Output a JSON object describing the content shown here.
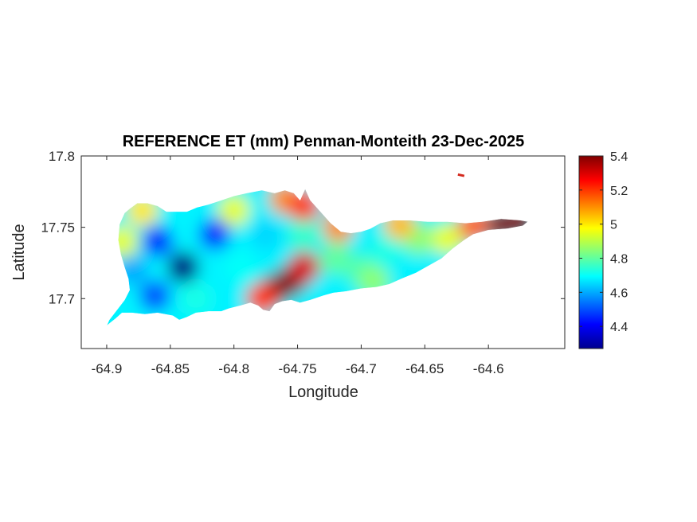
{
  "chart_data": {
    "type": "heatmap",
    "title": "REFERENCE ET (mm) Penman-Monteith 23-Dec-2025",
    "xlabel": "Longitude",
    "ylabel": "Latitude",
    "xlim": [
      -64.92,
      -64.54
    ],
    "ylim": [
      17.665,
      17.8
    ],
    "x_ticks": [
      -64.9,
      -64.85,
      -64.8,
      -64.75,
      -64.7,
      -64.65,
      -64.6
    ],
    "x_tick_labels": [
      "-64.9",
      "-64.85",
      "-64.8",
      "-64.75",
      "-64.7",
      "-64.65",
      "-64.6"
    ],
    "y_ticks": [
      17.7,
      17.75,
      17.8
    ],
    "y_tick_labels": [
      "17.7",
      "17.75",
      "17.8"
    ],
    "colormap": "jet",
    "colorbar": {
      "clim": [
        4.27,
        5.4
      ],
      "ticks": [
        4.4,
        4.6,
        4.8,
        5.0,
        5.2,
        5.4
      ],
      "tick_labels": [
        "4.4",
        "4.6",
        "4.8",
        "5",
        "5.2",
        "5.4"
      ]
    },
    "grid": false,
    "outline": [
      [
        -64.9,
        17.681
      ],
      [
        -64.893,
        17.686
      ],
      [
        -64.888,
        17.69
      ],
      [
        -64.88,
        17.69
      ],
      [
        -64.87,
        17.689
      ],
      [
        -64.86,
        17.69
      ],
      [
        -64.848,
        17.688
      ],
      [
        -64.843,
        17.685
      ],
      [
        -64.837,
        17.687
      ],
      [
        -64.83,
        17.69
      ],
      [
        -64.82,
        17.691
      ],
      [
        -64.81,
        17.691
      ],
      [
        -64.804,
        17.693
      ],
      [
        -64.795,
        17.695
      ],
      [
        -64.787,
        17.697
      ],
      [
        -64.781,
        17.695
      ],
      [
        -64.777,
        17.692
      ],
      [
        -64.772,
        17.691
      ],
      [
        -64.768,
        17.696
      ],
      [
        -64.762,
        17.698
      ],
      [
        -64.755,
        17.699
      ],
      [
        -64.748,
        17.697
      ],
      [
        -64.74,
        17.699
      ],
      [
        -64.73,
        17.702
      ],
      [
        -64.722,
        17.704
      ],
      [
        -64.712,
        17.705
      ],
      [
        -64.7,
        17.707
      ],
      [
        -64.688,
        17.708
      ],
      [
        -64.678,
        17.71
      ],
      [
        -64.668,
        17.714
      ],
      [
        -64.657,
        17.718
      ],
      [
        -64.647,
        17.723
      ],
      [
        -64.637,
        17.728
      ],
      [
        -64.628,
        17.735
      ],
      [
        -64.619,
        17.741
      ],
      [
        -64.612,
        17.745
      ],
      [
        -64.6,
        17.748
      ],
      [
        -64.585,
        17.749
      ],
      [
        -64.573,
        17.751
      ],
      [
        -64.569,
        17.754
      ],
      [
        -64.575,
        17.755
      ],
      [
        -64.59,
        17.756
      ],
      [
        -64.605,
        17.754
      ],
      [
        -64.618,
        17.753
      ],
      [
        -64.632,
        17.754
      ],
      [
        -64.648,
        17.754
      ],
      [
        -64.662,
        17.755
      ],
      [
        -64.675,
        17.755
      ],
      [
        -64.685,
        17.753
      ],
      [
        -64.693,
        17.749
      ],
      [
        -64.7,
        17.747
      ],
      [
        -64.708,
        17.746
      ],
      [
        -64.716,
        17.747
      ],
      [
        -64.724,
        17.753
      ],
      [
        -64.732,
        17.761
      ],
      [
        -64.74,
        17.769
      ],
      [
        -64.744,
        17.777
      ],
      [
        -64.748,
        17.769
      ],
      [
        -64.753,
        17.774
      ],
      [
        -64.76,
        17.776
      ],
      [
        -64.768,
        17.774
      ],
      [
        -64.778,
        17.776
      ],
      [
        -64.79,
        17.774
      ],
      [
        -64.8,
        17.772
      ],
      [
        -64.81,
        17.769
      ],
      [
        -64.82,
        17.766
      ],
      [
        -64.829,
        17.764
      ],
      [
        -64.837,
        17.761
      ],
      [
        -64.845,
        17.761
      ],
      [
        -64.853,
        17.761
      ],
      [
        -64.86,
        17.765
      ],
      [
        -64.868,
        17.767
      ],
      [
        -64.876,
        17.767
      ],
      [
        -64.882,
        17.763
      ],
      [
        -64.886,
        17.76
      ],
      [
        -64.89,
        17.752
      ],
      [
        -64.891,
        17.741
      ],
      [
        -64.889,
        17.731
      ],
      [
        -64.886,
        17.722
      ],
      [
        -64.883,
        17.714
      ],
      [
        -64.882,
        17.706
      ],
      [
        -64.886,
        17.699
      ],
      [
        -64.892,
        17.692
      ],
      [
        -64.898,
        17.685
      ]
    ],
    "islet": [
      [
        -64.624,
        17.787
      ],
      [
        -64.619,
        17.786
      ]
    ],
    "hotspots": [
      {
        "x": -64.84,
        "y": 17.722,
        "value": 4.27
      },
      {
        "x": -64.86,
        "y": 17.74,
        "value": 4.45
      },
      {
        "x": -64.815,
        "y": 17.745,
        "value": 4.45
      },
      {
        "x": -64.862,
        "y": 17.702,
        "value": 4.5
      },
      {
        "x": -64.88,
        "y": 17.72,
        "value": 4.6
      },
      {
        "x": -64.795,
        "y": 17.722,
        "value": 4.7
      },
      {
        "x": -64.83,
        "y": 17.7,
        "value": 4.72
      },
      {
        "x": -64.775,
        "y": 17.745,
        "value": 4.65
      },
      {
        "x": -64.745,
        "y": 17.745,
        "value": 4.75
      },
      {
        "x": -64.72,
        "y": 17.728,
        "value": 4.8
      },
      {
        "x": -64.7,
        "y": 17.72,
        "value": 4.78
      },
      {
        "x": -64.68,
        "y": 17.735,
        "value": 4.72
      },
      {
        "x": -64.655,
        "y": 17.742,
        "value": 4.85
      },
      {
        "x": -64.632,
        "y": 17.742,
        "value": 4.95
      },
      {
        "x": -64.59,
        "y": 17.752,
        "value": 5.4
      },
      {
        "x": -64.575,
        "y": 17.754,
        "value": 5.4
      },
      {
        "x": -64.612,
        "y": 17.751,
        "value": 5.15
      },
      {
        "x": -64.755,
        "y": 17.713,
        "value": 5.4
      },
      {
        "x": -64.768,
        "y": 17.706,
        "value": 5.4
      },
      {
        "x": -64.745,
        "y": 17.722,
        "value": 5.3
      },
      {
        "x": -64.778,
        "y": 17.7,
        "value": 5.2
      },
      {
        "x": -64.76,
        "y": 17.77,
        "value": 5.1
      },
      {
        "x": -64.745,
        "y": 17.765,
        "value": 5.2
      },
      {
        "x": -64.8,
        "y": 17.762,
        "value": 4.95
      },
      {
        "x": -64.872,
        "y": 17.762,
        "value": 5.0
      },
      {
        "x": -64.888,
        "y": 17.74,
        "value": 4.95
      },
      {
        "x": -64.718,
        "y": 17.75,
        "value": 5.1
      },
      {
        "x": -64.67,
        "y": 17.752,
        "value": 5.05
      },
      {
        "x": -64.69,
        "y": 17.712,
        "value": 4.85
      }
    ]
  }
}
